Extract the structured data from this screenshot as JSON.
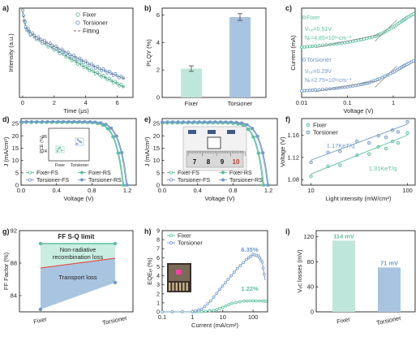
{
  "colors": {
    "fixer": "#5bbf9e",
    "torsioner": "#6f98c8",
    "fixer_bar": "#bfe6da",
    "torsioner_bar": "#a9c4e1",
    "red_line": "#e8413a",
    "fit": "#6c6c6c",
    "rect": "#c9eee1",
    "tri": "#a9c4e1"
  },
  "panels": {
    "a": {
      "label": "a)",
      "xlabel": "Time (μs)",
      "ylabel": "Intensity (a.u.)",
      "xticks": [
        "0",
        "2",
        "4",
        "6"
      ],
      "legend": [
        "Fixer",
        "Torsioner",
        "Fitting"
      ]
    },
    "b": {
      "label": "b)",
      "ylabel": "PLQY (%)",
      "yticks": [
        "0",
        "2",
        "4",
        "6"
      ],
      "categories": [
        "Fixer",
        "Torsioner"
      ]
    },
    "c": {
      "label": "c)",
      "xlabel": "Voltage (V)",
      "ylabel": "Current (mA)",
      "xticks": [
        "0.01",
        "0.1",
        "1"
      ],
      "fixer_name": "Fixer",
      "fixer_v": "Vₜₒₗ=0.51V",
      "fixer_n": "Nₜ=4.85×10¹⁶cm⁻³",
      "tors_name": "Torsioner",
      "tors_v": "Vₜₒₗ=0.29V",
      "tors_n": "Nₜ=2.75×10¹⁶cm⁻³"
    },
    "d": {
      "label": "d)",
      "xlabel": "Voltage (V)",
      "ylabel": "J (mA/cm²)",
      "xticks": [
        "0.0",
        "0.4",
        "0.8",
        "1.2"
      ],
      "yticks": [
        "0",
        "5",
        "10",
        "15",
        "20",
        "25"
      ],
      "legend": [
        "Fixer-FS",
        "Fixer-RS",
        "Torsioner-FS",
        "Torsioner-RS"
      ],
      "inset_ylabel": "PCE (%)",
      "inset_yticks": [
        "24",
        "26"
      ],
      "inset_cats": [
        "Fixer",
        "Torsioner"
      ]
    },
    "e": {
      "label": "e)",
      "xlabel": "Voltage (V)",
      "ylabel": "J (mA/cm²)",
      "xticks": [
        "0.0",
        "0.4",
        "0.8",
        "1.2"
      ],
      "yticks": [
        "0",
        "5",
        "10",
        "15",
        "20",
        "25"
      ],
      "legend": [
        "Fixer-FS",
        "Fixer-RS",
        "Torsioner-FS",
        "Torsioner-RS"
      ],
      "ruler": [
        "7",
        "8",
        "9",
        "10"
      ],
      "ruler_mark": "10"
    },
    "f": {
      "label": "f)",
      "xlabel": "Light intensity (mW/cm²)",
      "ylabel": "Voltage (V)",
      "xticks": [
        "10",
        "100"
      ],
      "yticks": [
        "1.08",
        "1.12",
        "1.16"
      ],
      "legend": [
        "Fixer",
        "Torsioner"
      ],
      "tors_slope": "1.17KeT/q",
      "fixer_slope": "1.31KeT/q"
    },
    "g": {
      "label": "g)",
      "ylabel": "FF Factor (%)",
      "yticks": [
        "84",
        "88",
        "92"
      ],
      "categories": [
        "Fixer",
        "Torsioner"
      ],
      "limit": "FF S-Q limit",
      "nonrad1": "Non-radiative",
      "nonrad2": "recombination loss",
      "transport": "Transport loss"
    },
    "h": {
      "label": "h)",
      "xlabel": "Current (mA/cm²)",
      "ylabel": "EQEₑₗ (%)",
      "xticks": [
        "0.1",
        "1",
        "10",
        "100"
      ],
      "yticks": [
        "0",
        "1",
        "2",
        "3",
        "4",
        "5",
        "6",
        "7",
        "8",
        "9"
      ],
      "legend": [
        "Fixer",
        "Torsioner"
      ],
      "tors_peak": "6.35%",
      "fixer_peak": "1.22%"
    },
    "i": {
      "label": "i)",
      "ylabel": "Vₒc losses (mV)",
      "yticks": [
        "0",
        "40",
        "80",
        "120"
      ],
      "categories": [
        "Fixer",
        "Torsioner"
      ],
      "labels": [
        "114 mV",
        "71 mV"
      ]
    }
  },
  "chart_data": [
    {
      "panel": "a",
      "type": "line",
      "xlabel": "Time (μs)",
      "ylabel": "Intensity (a.u.)",
      "xlim": [
        -0.2,
        7
      ],
      "ylog": true,
      "series": [
        {
          "name": "Fixer",
          "x": [
            0,
            0.2,
            0.5,
            1,
            1.5,
            2,
            2.5,
            3,
            3.5,
            4,
            4.5,
            5,
            5.5,
            6,
            6.5
          ],
          "y": [
            1,
            0.42,
            0.3,
            0.22,
            0.17,
            0.135,
            0.105,
            0.082,
            0.064,
            0.05,
            0.04,
            0.032,
            0.026,
            0.021,
            0.017
          ]
        },
        {
          "name": "Torsioner",
          "x": [
            0,
            0.2,
            0.5,
            1,
            1.5,
            2,
            2.5,
            3,
            3.5,
            4,
            4.5,
            5,
            5.5,
            6,
            6.5
          ],
          "y": [
            1,
            0.44,
            0.32,
            0.24,
            0.19,
            0.155,
            0.125,
            0.1,
            0.081,
            0.066,
            0.054,
            0.045,
            0.038,
            0.032,
            0.027
          ]
        }
      ]
    },
    {
      "panel": "b",
      "type": "bar",
      "categories": [
        "Fixer",
        "Torsioner"
      ],
      "values": [
        2.1,
        5.85
      ],
      "errors": [
        0.2,
        0.25
      ],
      "ylabel": "PLQY (%)",
      "ylim": [
        0,
        6.5
      ]
    },
    {
      "panel": "c",
      "type": "line",
      "xlabel": "Voltage (V)",
      "ylabel": "Current (mA)",
      "xlog": true,
      "xlim": [
        0.01,
        3
      ],
      "series": [
        {
          "name": "Fixer",
          "x": [
            0.01,
            0.02,
            0.05,
            0.1,
            0.2,
            0.4,
            0.6,
            1,
            1.5,
            2,
            3
          ],
          "y": [
            0.8,
            0.88,
            1.0,
            1.12,
            1.28,
            1.5,
            1.72,
            2.1,
            2.45,
            2.7,
            3.0
          ]
        },
        {
          "name": "Torsioner",
          "x": [
            0.01,
            0.02,
            0.05,
            0.1,
            0.2,
            0.3,
            0.5,
            1,
            1.5,
            2,
            3
          ],
          "y": [
            0.2,
            0.26,
            0.35,
            0.45,
            0.6,
            0.72,
            0.95,
            1.35,
            1.65,
            1.85,
            2.1
          ]
        }
      ]
    },
    {
      "panel": "d",
      "type": "line",
      "xlabel": "Voltage (V)",
      "ylabel": "J (mA/cm²)",
      "xlim": [
        0,
        1.3
      ],
      "ylim": [
        0,
        27
      ],
      "series": [
        {
          "name": "Fixer-FS",
          "jsc": 25.4,
          "voc": 1.15
        },
        {
          "name": "Fixer-RS",
          "jsc": 25.5,
          "voc": 1.16
        },
        {
          "name": "Torsioner-FS",
          "jsc": 25.7,
          "voc": 1.19
        },
        {
          "name": "Torsioner-RS",
          "jsc": 25.8,
          "voc": 1.2
        }
      ]
    },
    {
      "panel": "e",
      "type": "line",
      "xlabel": "Voltage (V)",
      "ylabel": "J (mA/cm²)",
      "xlim": [
        0,
        1.3
      ],
      "ylim": [
        0,
        27
      ],
      "series": [
        {
          "name": "Fixer-FS",
          "jsc": 25.2,
          "voc": 1.14
        },
        {
          "name": "Fixer-RS",
          "jsc": 25.3,
          "voc": 1.15
        },
        {
          "name": "Torsioner-FS",
          "jsc": 25.6,
          "voc": 1.19
        },
        {
          "name": "Torsioner-RS",
          "jsc": 25.7,
          "voc": 1.2
        }
      ]
    },
    {
      "panel": "f",
      "type": "scatter",
      "xlabel": "Light intensity (mW/cm²)",
      "ylabel": "Voltage (V)",
      "xlog": true,
      "xlim": [
        8,
        120
      ],
      "ylim": [
        1.07,
        1.19
      ],
      "series": [
        {
          "name": "Fixer",
          "x": [
            10,
            15,
            20,
            30,
            40,
            50,
            60,
            70,
            80,
            100
          ],
          "y": [
            1.09,
            1.1,
            1.11,
            1.12,
            1.13,
            1.135,
            1.14,
            1.145,
            1.15,
            1.16
          ]
        },
        {
          "name": "Torsioner",
          "x": [
            10,
            15,
            20,
            30,
            40,
            50,
            60,
            70,
            80,
            100
          ],
          "y": [
            1.115,
            1.125,
            1.135,
            1.145,
            1.15,
            1.155,
            1.16,
            1.165,
            1.17,
            1.18
          ]
        }
      ]
    },
    {
      "panel": "g",
      "type": "area",
      "categories": [
        "Fixer",
        "Torsioner"
      ],
      "ylabel": "FF Factor (%)",
      "ylim": [
        82,
        92
      ],
      "sq_limit": [
        90.4,
        90.4
      ],
      "nonrad_boundary": [
        87.4,
        88.6
      ],
      "ff": [
        82.3,
        85.6
      ]
    },
    {
      "panel": "h",
      "type": "line",
      "xlabel": "Current (mA/cm²)",
      "ylabel": "EQEₑₗ (%)",
      "xlog": true,
      "xlim": [
        0.1,
        300
      ],
      "ylim": [
        0,
        9
      ],
      "series": [
        {
          "name": "Fixer",
          "x": [
            0.1,
            1,
            2,
            5,
            10,
            20,
            50,
            100,
            200,
            300
          ],
          "y": [
            0,
            0,
            0.02,
            0.15,
            0.5,
            0.95,
            1.2,
            1.22,
            1.2,
            1.15
          ]
        },
        {
          "name": "Torsioner",
          "x": [
            0.1,
            1,
            2,
            4,
            8,
            15,
            30,
            60,
            100,
            150,
            200,
            250
          ],
          "y": [
            0,
            0.02,
            0.3,
            1.2,
            2.5,
            3.6,
            4.8,
            5.8,
            6.35,
            6.2,
            5.5,
            3.5
          ]
        }
      ]
    },
    {
      "panel": "i",
      "type": "bar",
      "categories": [
        "Fixer",
        "Torsioner"
      ],
      "values": [
        114,
        71
      ],
      "ylabel": "Vₒc losses (mV)",
      "ylim": [
        0,
        130
      ]
    }
  ]
}
